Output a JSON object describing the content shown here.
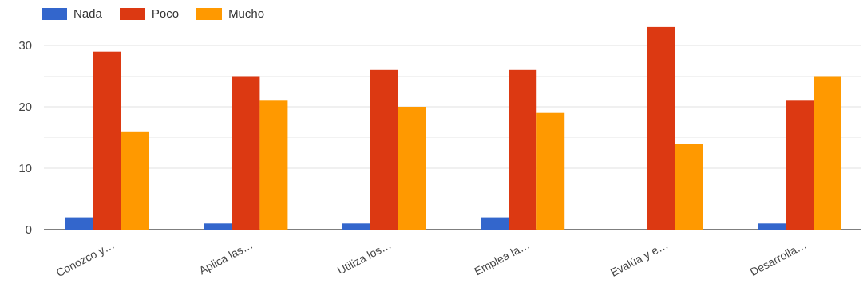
{
  "chart_data": {
    "type": "bar",
    "categories": [
      "Conozco y…",
      "Aplica las…",
      "Utiliza los…",
      "Emplea la…",
      "Evalúa y e…",
      "Desarrolla…"
    ],
    "series": [
      {
        "name": "Nada",
        "color": "#3366cc",
        "values": [
          2,
          1,
          1,
          2,
          0,
          1
        ]
      },
      {
        "name": "Poco",
        "color": "#dc3912",
        "values": [
          29,
          25,
          26,
          26,
          33,
          21
        ]
      },
      {
        "name": "Mucho",
        "color": "#ff9900",
        "values": [
          16,
          21,
          20,
          19,
          14,
          25
        ]
      }
    ],
    "yticks": [
      0,
      10,
      20,
      30
    ],
    "ylim": [
      0,
      34
    ],
    "grid": true,
    "legend_position": "top-left"
  }
}
